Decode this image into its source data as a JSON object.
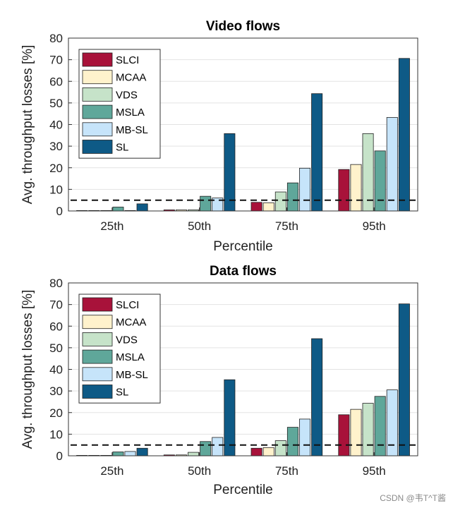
{
  "chart_data": [
    {
      "type": "bar",
      "title": "Video flows",
      "xlabel": "Percentile",
      "ylabel": "Avg. throughput losses [%]",
      "ylim": [
        0,
        80
      ],
      "yticks": [
        "0",
        "10",
        "20",
        "30",
        "40",
        "50",
        "60",
        "70",
        "80"
      ],
      "categories": [
        "25th",
        "50th",
        "75th",
        "95th"
      ],
      "threshold": 5,
      "legend_position": "top-left",
      "series": [
        {
          "name": "SLCI",
          "color": "#a8123a",
          "values": [
            0.1,
            0.5,
            4.0,
            19.2
          ]
        },
        {
          "name": "MCAA",
          "color": "#fff2cc",
          "values": [
            0.1,
            0.5,
            3.8,
            21.5
          ]
        },
        {
          "name": "VDS",
          "color": "#c6e3c9",
          "values": [
            0.1,
            0.5,
            8.8,
            35.8
          ]
        },
        {
          "name": "MSLA",
          "color": "#5fa79a",
          "values": [
            1.8,
            6.8,
            13.0,
            27.8
          ]
        },
        {
          "name": "MB-SL",
          "color": "#c6e4fa",
          "values": [
            0.1,
            6.0,
            19.8,
            43.3
          ]
        },
        {
          "name": "SL",
          "color": "#0e5a86",
          "values": [
            3.3,
            35.8,
            54.3,
            70.6
          ]
        }
      ]
    },
    {
      "type": "bar",
      "title": "Data flows",
      "xlabel": "Percentile",
      "ylabel": "Avg. throughput losses [%]",
      "ylim": [
        0,
        80
      ],
      "yticks": [
        "0",
        "10",
        "20",
        "30",
        "40",
        "50",
        "60",
        "70",
        "80"
      ],
      "categories": [
        "25th",
        "50th",
        "75th",
        "95th"
      ],
      "threshold": 5,
      "legend_position": "top-left",
      "series": [
        {
          "name": "SLCI",
          "color": "#a8123a",
          "values": [
            0.1,
            0.4,
            3.5,
            19.0
          ]
        },
        {
          "name": "MCAA",
          "color": "#fff2cc",
          "values": [
            0.1,
            0.4,
            3.8,
            21.5
          ]
        },
        {
          "name": "VDS",
          "color": "#c6e3c9",
          "values": [
            0.1,
            1.6,
            7.0,
            24.3
          ]
        },
        {
          "name": "MSLA",
          "color": "#5fa79a",
          "values": [
            1.8,
            6.6,
            13.2,
            27.5
          ]
        },
        {
          "name": "MB-SL",
          "color": "#c6e4fa",
          "values": [
            2.0,
            8.5,
            17.0,
            30.5
          ]
        },
        {
          "name": "SL",
          "color": "#0e5a86",
          "values": [
            3.5,
            35.2,
            54.2,
            70.3
          ]
        }
      ]
    }
  ],
  "watermark": "CSDN @韦T^T酱"
}
